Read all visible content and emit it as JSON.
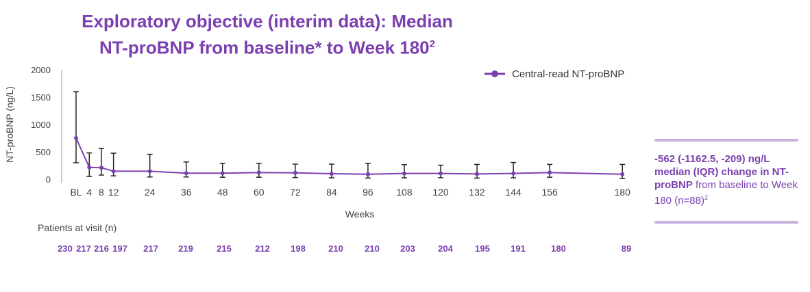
{
  "title": {
    "line1": "Exploratory objective (interim data): Median",
    "line2": "NT-proBNP from baseline* to Week 180",
    "superscript": "2"
  },
  "callout": {
    "bold_text": "-562 (-1162.5, -209) ng/L median (IQR) change in NT-proBNP",
    "regular_text": " from baseline to Week 180 (n=88)",
    "superscript": "2"
  },
  "patients": {
    "label": "Patients at visit (n)",
    "counts": [
      "230",
      "217",
      "216",
      "197",
      "217",
      "219",
      "215",
      "212",
      "198",
      "210",
      "210",
      "203",
      "204",
      "195",
      "191",
      "180",
      "89"
    ]
  },
  "colors": {
    "series": "#7B3FB0",
    "error_bar": "#222222",
    "axis": "#999999",
    "callout_rule": "#C9AEDE"
  },
  "chart_data": {
    "type": "line",
    "xlabel": "Weeks",
    "ylabel": "NT-proBNP (ng/L)",
    "ylim": [
      0,
      2000
    ],
    "yticks": [
      0,
      500,
      1000,
      1500,
      2000
    ],
    "legend_position": "top-right",
    "categories": [
      "BL",
      "4",
      "8",
      "12",
      "24",
      "36",
      "48",
      "60",
      "72",
      "84",
      "96",
      "108",
      "120",
      "132",
      "144",
      "156",
      "180"
    ],
    "x": [
      0,
      4,
      8,
      12,
      24,
      36,
      48,
      60,
      72,
      84,
      96,
      108,
      120,
      132,
      144,
      156,
      180
    ],
    "series": [
      {
        "name": "Central-read NT-proBNP",
        "values": [
          750,
          215,
          210,
          145,
          145,
          110,
          110,
          120,
          115,
          100,
          90,
          105,
          105,
          95,
          105,
          120,
          90
        ],
        "q1": [
          300,
          50,
          75,
          60,
          40,
          40,
          35,
          35,
          30,
          25,
          20,
          25,
          25,
          20,
          25,
          35,
          15
        ],
        "q3": [
          1600,
          480,
          560,
          475,
          455,
          315,
          290,
          290,
          275,
          275,
          290,
          265,
          255,
          270,
          305,
          270,
          270
        ]
      }
    ]
  }
}
